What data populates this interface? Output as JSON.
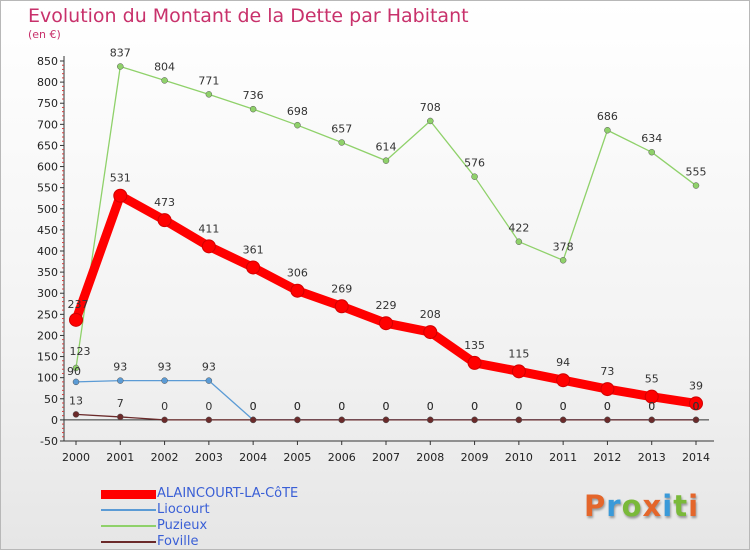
{
  "header": {
    "title": "Evolution du Montant de la Dette par Habitant",
    "subtitle": "(en €)"
  },
  "logo": {
    "text": "Proxiti",
    "colors": [
      "#e4662b",
      "#3a9ad9",
      "#7ab93a",
      "#e4662b",
      "#3a9ad9",
      "#7ab93a",
      "#e4662b"
    ]
  },
  "chart_data": {
    "type": "line",
    "x": [
      "2000",
      "2001",
      "2002",
      "2003",
      "2004",
      "2005",
      "2006",
      "2007",
      "2008",
      "2009",
      "2010",
      "2011",
      "2012",
      "2013",
      "2014"
    ],
    "ylim": [
      -50,
      850
    ],
    "yticks": [
      -50,
      0,
      50,
      100,
      150,
      200,
      250,
      300,
      350,
      400,
      450,
      500,
      550,
      600,
      650,
      700,
      750,
      800,
      850
    ],
    "grid": false,
    "legend_position": "bottom-left",
    "series": [
      {
        "name": "ALAINCOURT-LA-CôTE",
        "color": "#ff0000",
        "values": [
          237,
          531,
          473,
          411,
          361,
          306,
          269,
          229,
          208,
          135,
          115,
          94,
          73,
          55,
          39
        ]
      },
      {
        "name": "Liocourt",
        "color": "#5b9bd5",
        "values": [
          90,
          93,
          93,
          93,
          0,
          0,
          0,
          0,
          0,
          0,
          0,
          0,
          0,
          0,
          0
        ]
      },
      {
        "name": "Puzieux",
        "color": "#8fd16a",
        "values": [
          123,
          837,
          804,
          771,
          736,
          698,
          657,
          614,
          708,
          576,
          422,
          378,
          686,
          634,
          555
        ]
      },
      {
        "name": "Foville",
        "color": "#6b2a2a",
        "values": [
          13,
          7,
          0,
          0,
          0,
          0,
          0,
          0,
          0,
          0,
          0,
          0,
          0,
          0,
          0
        ]
      }
    ]
  }
}
